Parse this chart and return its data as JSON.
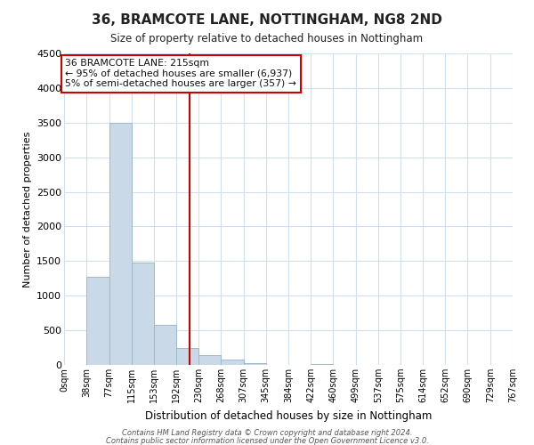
{
  "title": "36, BRAMCOTE LANE, NOTTINGHAM, NG8 2ND",
  "subtitle": "Size of property relative to detached houses in Nottingham",
  "xlabel": "Distribution of detached houses by size in Nottingham",
  "ylabel": "Number of detached properties",
  "bar_color": "#c9d9e8",
  "bar_edge_color": "#a0b8cc",
  "bin_edges": [
    0,
    38,
    77,
    115,
    153,
    192,
    230,
    268,
    307,
    345,
    384,
    422,
    460,
    499,
    537,
    575,
    614,
    652,
    690,
    729,
    767
  ],
  "bar_heights": [
    0,
    1270,
    3500,
    1480,
    580,
    250,
    140,
    80,
    20,
    0,
    0,
    15,
    0,
    0,
    0,
    0,
    0,
    0,
    0,
    0
  ],
  "property_size": 215,
  "vline_color": "#cc0000",
  "annotation_box_color": "#cc0000",
  "annotation_text_line1": "36 BRAMCOTE LANE: 215sqm",
  "annotation_text_line2": "← 95% of detached houses are smaller (6,937)",
  "annotation_text_line3": "5% of semi-detached houses are larger (357) →",
  "ylim": [
    0,
    4500
  ],
  "yticks": [
    0,
    500,
    1000,
    1500,
    2000,
    2500,
    3000,
    3500,
    4000,
    4500
  ],
  "tick_labels": [
    "0sqm",
    "38sqm",
    "77sqm",
    "115sqm",
    "153sqm",
    "192sqm",
    "230sqm",
    "268sqm",
    "307sqm",
    "345sqm",
    "384sqm",
    "422sqm",
    "460sqm",
    "499sqm",
    "537sqm",
    "575sqm",
    "614sqm",
    "652sqm",
    "690sqm",
    "729sqm",
    "767sqm"
  ],
  "footer_line1": "Contains HM Land Registry data © Crown copyright and database right 2024.",
  "footer_line2": "Contains public sector information licensed under the Open Government Licence v3.0.",
  "background_color": "#ffffff",
  "grid_color": "#d0e0ee"
}
